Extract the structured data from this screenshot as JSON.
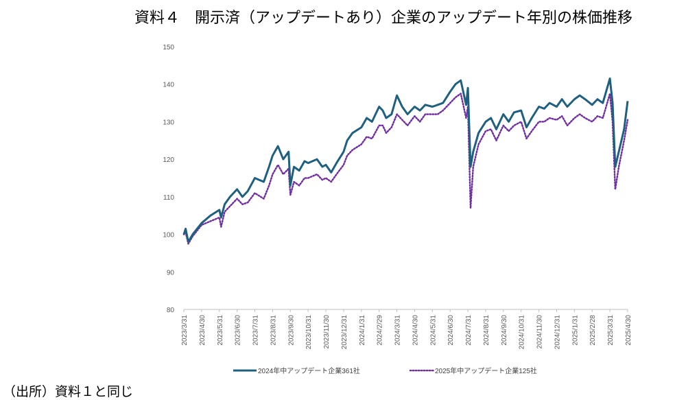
{
  "title": "資料４　開示済（アップデートあり）企業のアップデート年別の株価推移",
  "source": "（出所）資料１と同じ",
  "chart_data": {
    "type": "line",
    "ylim": [
      80,
      150
    ],
    "yticks": [
      80,
      90,
      100,
      110,
      120,
      130,
      140,
      150
    ],
    "categories": [
      "2023/3/31",
      "2023/4/30",
      "2023/5/31",
      "2023/6/30",
      "2023/7/31",
      "2023/8/31",
      "2023/9/30",
      "2023/10/31",
      "2023/11/30",
      "2023/12/31",
      "2024/1/31",
      "2024/2/29",
      "2024/3/31",
      "2024/4/30",
      "2024/5/31",
      "2024/6/30",
      "2024/7/31",
      "2024/8/31",
      "2024/9/30",
      "2024/10/31",
      "2024/11/30",
      "2024/12/31",
      "2025/1/31",
      "2025/2/28",
      "2025/3/31",
      "2025/4/30"
    ],
    "series": [
      {
        "name": "2024年中アップデート企業361社",
        "color": "#1f5f7f",
        "style": "solid",
        "points": [
          [
            0,
            100
          ],
          [
            0.1,
            101.5
          ],
          [
            0.25,
            98
          ],
          [
            0.5,
            100
          ],
          [
            1,
            103
          ],
          [
            1.5,
            105
          ],
          [
            2,
            106.5
          ],
          [
            2.1,
            104.5
          ],
          [
            2.3,
            108
          ],
          [
            2.6,
            110
          ],
          [
            3,
            112
          ],
          [
            3.3,
            110
          ],
          [
            3.6,
            111.5
          ],
          [
            4,
            115
          ],
          [
            4.5,
            114
          ],
          [
            4.8,
            118
          ],
          [
            5,
            121
          ],
          [
            5.3,
            123.5
          ],
          [
            5.6,
            120
          ],
          [
            5.9,
            122
          ],
          [
            6,
            113
          ],
          [
            6.2,
            118
          ],
          [
            6.5,
            117
          ],
          [
            6.8,
            119.5
          ],
          [
            7,
            119
          ],
          [
            7.5,
            120
          ],
          [
            7.8,
            118
          ],
          [
            8,
            118.5
          ],
          [
            8.3,
            116.5
          ],
          [
            8.6,
            119
          ],
          [
            9,
            122
          ],
          [
            9.2,
            125
          ],
          [
            9.5,
            127
          ],
          [
            10,
            128.5
          ],
          [
            10.3,
            131
          ],
          [
            10.6,
            130
          ],
          [
            11,
            134
          ],
          [
            11.2,
            133
          ],
          [
            11.4,
            131
          ],
          [
            11.7,
            132
          ],
          [
            12,
            137
          ],
          [
            12.3,
            134
          ],
          [
            12.6,
            132
          ],
          [
            13,
            134
          ],
          [
            13.3,
            133
          ],
          [
            13.6,
            134.5
          ],
          [
            14,
            134
          ],
          [
            14.3,
            134.5
          ],
          [
            14.6,
            135
          ],
          [
            15,
            138
          ],
          [
            15.3,
            140
          ],
          [
            15.6,
            141
          ],
          [
            15.9,
            134.5
          ],
          [
            16,
            139
          ],
          [
            16.15,
            118
          ],
          [
            16.3,
            122
          ],
          [
            16.6,
            127
          ],
          [
            17,
            130
          ],
          [
            17.3,
            131
          ],
          [
            17.6,
            128
          ],
          [
            18,
            132
          ],
          [
            18.3,
            130
          ],
          [
            18.6,
            132.5
          ],
          [
            19,
            133
          ],
          [
            19.3,
            128.5
          ],
          [
            19.6,
            131
          ],
          [
            20,
            134
          ],
          [
            20.3,
            133.5
          ],
          [
            20.6,
            135
          ],
          [
            21,
            134
          ],
          [
            21.3,
            136
          ],
          [
            21.6,
            134
          ],
          [
            22,
            136
          ],
          [
            22.3,
            137
          ],
          [
            22.6,
            136
          ],
          [
            23,
            134.5
          ],
          [
            23.3,
            136
          ],
          [
            23.6,
            135
          ],
          [
            24,
            141.5
          ],
          [
            24.15,
            135
          ],
          [
            24.3,
            118
          ],
          [
            24.5,
            122
          ],
          [
            24.8,
            128
          ],
          [
            25,
            135.5
          ]
        ]
      },
      {
        "name": "2025年中アップデート企業125社",
        "color": "#7030a0",
        "style": "dotted",
        "points": [
          [
            0,
            100
          ],
          [
            0.1,
            100.5
          ],
          [
            0.25,
            97.5
          ],
          [
            0.5,
            99.5
          ],
          [
            1,
            102.5
          ],
          [
            1.5,
            103.5
          ],
          [
            2,
            104.5
          ],
          [
            2.1,
            102
          ],
          [
            2.3,
            106
          ],
          [
            2.6,
            107.5
          ],
          [
            3,
            109.5
          ],
          [
            3.3,
            108
          ],
          [
            3.6,
            108.5
          ],
          [
            4,
            111
          ],
          [
            4.5,
            109.5
          ],
          [
            4.8,
            113
          ],
          [
            5,
            116
          ],
          [
            5.3,
            118.5
          ],
          [
            5.6,
            116
          ],
          [
            5.9,
            117.5
          ],
          [
            6,
            110.5
          ],
          [
            6.2,
            114
          ],
          [
            6.5,
            113
          ],
          [
            6.8,
            115
          ],
          [
            7,
            115
          ],
          [
            7.5,
            116
          ],
          [
            7.8,
            114.5
          ],
          [
            8,
            115
          ],
          [
            8.3,
            114
          ],
          [
            8.6,
            116
          ],
          [
            9,
            118.5
          ],
          [
            9.2,
            121
          ],
          [
            9.5,
            122.5
          ],
          [
            10,
            124
          ],
          [
            10.3,
            126
          ],
          [
            10.6,
            125.5
          ],
          [
            11,
            129
          ],
          [
            11.2,
            129
          ],
          [
            11.4,
            127
          ],
          [
            11.7,
            128.5
          ],
          [
            12,
            132
          ],
          [
            12.3,
            130.5
          ],
          [
            12.6,
            129
          ],
          [
            13,
            131.5
          ],
          [
            13.3,
            130
          ],
          [
            13.6,
            132
          ],
          [
            14,
            132
          ],
          [
            14.3,
            132
          ],
          [
            14.6,
            133
          ],
          [
            15,
            135
          ],
          [
            15.3,
            136.5
          ],
          [
            15.6,
            137.5
          ],
          [
            15.9,
            131
          ],
          [
            16,
            134
          ],
          [
            16.15,
            107
          ],
          [
            16.3,
            118
          ],
          [
            16.6,
            124
          ],
          [
            17,
            127.5
          ],
          [
            17.3,
            128
          ],
          [
            17.6,
            125
          ],
          [
            18,
            129
          ],
          [
            18.3,
            127.5
          ],
          [
            18.6,
            129
          ],
          [
            19,
            130
          ],
          [
            19.3,
            125.5
          ],
          [
            19.6,
            127.5
          ],
          [
            20,
            130
          ],
          [
            20.3,
            130
          ],
          [
            20.6,
            131
          ],
          [
            21,
            130.5
          ],
          [
            21.3,
            131.5
          ],
          [
            21.6,
            129
          ],
          [
            22,
            131
          ],
          [
            22.3,
            132
          ],
          [
            22.6,
            131
          ],
          [
            23,
            130
          ],
          [
            23.3,
            131.5
          ],
          [
            23.6,
            131
          ],
          [
            24,
            137.5
          ],
          [
            24.15,
            130
          ],
          [
            24.3,
            112
          ],
          [
            24.5,
            118
          ],
          [
            24.8,
            125
          ],
          [
            25,
            130.5
          ]
        ]
      }
    ]
  }
}
